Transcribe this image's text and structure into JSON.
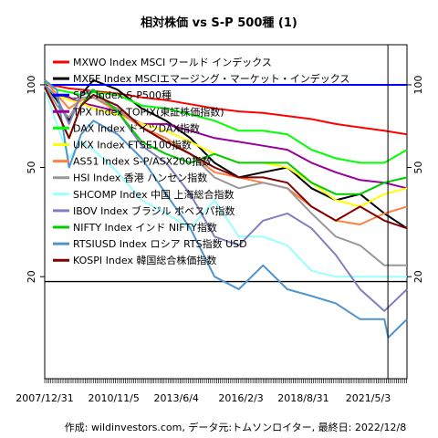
{
  "chart_data": {
    "type": "line",
    "title": "相対株価 vs S-P 500種 (1)",
    "caption": "作成: wildinvestors.com, データ元:トムソンロイター, 最終日: 2022/12/8",
    "xlabel": "",
    "ylabel": "",
    "y_scale": "log",
    "ylim": [
      8.5,
      140
    ],
    "yticks": [
      20,
      50,
      100
    ],
    "xlim": [
      "2007-12-31",
      "2022-12-08"
    ],
    "xtick_labels": [
      "2007/12/31",
      "2010/11/5",
      "2013/6/4",
      "2016/2/3",
      "2018/8/31",
      "2021/5/3"
    ],
    "xtick_dates": [
      "2007-12-31",
      "2010-11-05",
      "2013-06-04",
      "2016-02-03",
      "2018-08-31",
      "2021-05-03"
    ],
    "hlines": [
      {
        "y": 100,
        "color": "#0000ff"
      },
      {
        "y": 19.2,
        "color": "#000000"
      }
    ],
    "vline": {
      "x": "2022-02-24",
      "color": "#000000"
    },
    "grid": false,
    "legend_position": "top-left",
    "series": [
      {
        "name": "MXWO Index MSCI ワールド インデックス",
        "color": "#ff0000",
        "x": [
          "2008-01-01",
          "2008-07-01",
          "2009-01-01",
          "2009-07-01",
          "2010-01-01",
          "2011-01-01",
          "2012-01-01",
          "2013-01-01",
          "2014-01-01",
          "2015-01-01",
          "2016-01-01",
          "2017-01-01",
          "2018-01-01",
          "2019-01-01",
          "2020-01-01",
          "2021-01-01",
          "2022-01-01",
          "2022-12-08"
        ],
        "y": [
          100,
          99,
          97,
          96,
          95,
          93,
          90,
          88,
          85,
          82,
          80,
          79,
          77,
          75,
          72,
          70,
          68,
          66
        ]
      },
      {
        "name": "MXEF Index MSCIエマージング・マーケット・インデックス",
        "color": "#000000",
        "x": [
          "2008-01-01",
          "2008-07-01",
          "2009-01-01",
          "2009-07-01",
          "2010-01-01",
          "2011-01-01",
          "2012-01-01",
          "2013-01-01",
          "2014-01-01",
          "2015-01-01",
          "2016-01-01",
          "2017-01-01",
          "2018-01-01",
          "2019-01-01",
          "2020-01-01",
          "2021-01-01",
          "2022-01-01",
          "2022-12-08"
        ],
        "y": [
          100,
          88,
          74,
          92,
          104,
          96,
          82,
          74,
          64,
          52,
          46,
          48,
          50,
          42,
          38,
          40,
          34,
          30
        ]
      },
      {
        "name": "SPX Index S-P500種",
        "color": "#0000ff",
        "x": [
          "2008-01-01",
          "2022-12-08"
        ],
        "y": [
          100,
          100
        ]
      },
      {
        "name": "TPX Index TOPIX(東証株価指数)",
        "color": "#990099",
        "x": [
          "2008-01-01",
          "2008-07-01",
          "2009-01-01",
          "2009-07-01",
          "2010-01-01",
          "2011-01-01",
          "2012-01-01",
          "2013-01-01",
          "2014-01-01",
          "2015-01-01",
          "2016-01-01",
          "2017-01-01",
          "2018-01-01",
          "2019-01-01",
          "2020-01-01",
          "2021-01-01",
          "2022-01-01",
          "2022-12-08"
        ],
        "y": [
          98,
          92,
          90,
          86,
          84,
          80,
          72,
          72,
          68,
          64,
          62,
          60,
          58,
          52,
          48,
          45,
          44,
          42
        ]
      },
      {
        "name": "DAX Index ドイツDAX指数",
        "color": "#00ff00",
        "x": [
          "2008-01-01",
          "2008-07-01",
          "2009-01-01",
          "2009-07-01",
          "2010-01-01",
          "2011-01-01",
          "2012-01-01",
          "2013-01-01",
          "2014-01-01",
          "2015-01-01",
          "2016-01-01",
          "2017-01-01",
          "2018-01-01",
          "2019-01-01",
          "2020-01-01",
          "2021-01-01",
          "2022-01-01",
          "2022-12-08"
        ],
        "y": [
          102,
          96,
          94,
          92,
          94,
          92,
          84,
          82,
          78,
          74,
          68,
          68,
          66,
          58,
          54,
          52,
          52,
          58
        ]
      },
      {
        "name": "UKX Index FTSE100指数",
        "color": "#ffff00",
        "x": [
          "2008-01-01",
          "2008-07-01",
          "2009-01-01",
          "2009-07-01",
          "2010-01-01",
          "2011-01-01",
          "2012-01-01",
          "2013-01-01",
          "2014-01-01",
          "2015-01-01",
          "2016-01-01",
          "2017-01-01",
          "2018-01-01",
          "2019-01-01",
          "2020-01-01",
          "2021-01-01",
          "2022-01-01",
          "2022-12-08"
        ],
        "y": [
          98,
          92,
          88,
          86,
          82,
          78,
          72,
          68,
          62,
          56,
          52,
          52,
          50,
          44,
          38,
          36,
          40,
          42
        ]
      },
      {
        "name": "AS51 Index S-P/ASX200指数",
        "color": "#ff8040",
        "x": [
          "2008-01-01",
          "2008-07-01",
          "2009-01-01",
          "2009-07-01",
          "2010-01-01",
          "2011-01-01",
          "2012-01-01",
          "2013-01-01",
          "2014-01-01",
          "2015-01-01",
          "2016-01-01",
          "2017-01-01",
          "2018-01-01",
          "2019-01-01",
          "2020-01-01",
          "2021-01-01",
          "2022-01-01",
          "2022-12-08"
        ],
        "y": [
          104,
          92,
          82,
          88,
          90,
          80,
          70,
          64,
          56,
          48,
          46,
          44,
          42,
          36,
          32,
          31,
          34,
          36
        ]
      },
      {
        "name": "HSI Index 香港 ハンセン指数",
        "color": "#999999",
        "x": [
          "2008-01-01",
          "2008-07-01",
          "2009-01-01",
          "2009-07-01",
          "2010-01-01",
          "2011-01-01",
          "2012-01-01",
          "2013-01-01",
          "2014-01-01",
          "2015-01-01",
          "2016-01-01",
          "2017-01-01",
          "2018-01-01",
          "2019-01-01",
          "2020-01-01",
          "2021-01-01",
          "2022-01-01",
          "2022-12-08"
        ],
        "y": [
          100,
          84,
          76,
          90,
          90,
          82,
          70,
          62,
          56,
          46,
          42,
          44,
          42,
          34,
          28,
          26,
          22,
          22
        ]
      },
      {
        "name": "SHCOMP Index 中国 上海総合指数",
        "color": "#99ffff",
        "x": [
          "2008-01-01",
          "2008-07-01",
          "2009-01-01",
          "2009-07-01",
          "2010-01-01",
          "2011-01-01",
          "2012-01-01",
          "2013-01-01",
          "2014-01-01",
          "2015-01-01",
          "2016-01-01",
          "2017-01-01",
          "2018-01-01",
          "2019-01-01",
          "2020-01-01",
          "2021-01-01",
          "2022-01-01",
          "2022-12-08"
        ],
        "y": [
          96,
          72,
          54,
          62,
          58,
          48,
          38,
          34,
          30,
          38,
          28,
          28,
          26,
          21,
          20,
          20,
          20,
          20
        ]
      },
      {
        "name": "IBOV Index ブラジル ボベスパ指数",
        "color": "#8080c0",
        "x": [
          "2008-01-01",
          "2008-07-01",
          "2009-01-01",
          "2009-07-01",
          "2010-01-01",
          "2011-01-01",
          "2012-01-01",
          "2013-01-01",
          "2014-01-01",
          "2015-01-01",
          "2016-01-01",
          "2017-01-01",
          "2018-01-01",
          "2019-01-01",
          "2020-01-01",
          "2021-01-01",
          "2022-01-01",
          "2022-12-08"
        ],
        "y": [
          100,
          90,
          72,
          92,
          96,
          80,
          60,
          52,
          40,
          28,
          26,
          32,
          34,
          30,
          24,
          18,
          15,
          18
        ]
      },
      {
        "name": "NIFTY Index インド NIFTY指数",
        "color": "#00cc00",
        "x": [
          "2008-01-01",
          "2008-07-01",
          "2009-01-01",
          "2009-07-01",
          "2010-01-01",
          "2011-01-01",
          "2012-01-01",
          "2013-01-01",
          "2014-01-01",
          "2015-01-01",
          "2016-01-01",
          "2017-01-01",
          "2018-01-01",
          "2019-01-01",
          "2020-01-01",
          "2021-01-01",
          "2022-01-01",
          "2022-12-08"
        ],
        "y": [
          98,
          80,
          64,
          84,
          96,
          80,
          62,
          56,
          52,
          56,
          52,
          52,
          52,
          44,
          40,
          40,
          44,
          46
        ]
      },
      {
        "name": "RTSIUSD Index ロシア RTS指数 USD",
        "color": "#4f94cd",
        "x": [
          "2008-01-01",
          "2008-07-01",
          "2009-01-01",
          "2009-07-01",
          "2010-01-01",
          "2011-01-01",
          "2012-01-01",
          "2013-01-01",
          "2014-01-01",
          "2015-01-01",
          "2016-01-01",
          "2017-01-01",
          "2018-01-01",
          "2019-01-01",
          "2020-01-01",
          "2021-01-01",
          "2022-01-01",
          "2022-03-01",
          "2022-12-08"
        ],
        "y": [
          104,
          96,
          50,
          66,
          74,
          66,
          54,
          40,
          30,
          20,
          18,
          22,
          18,
          17,
          16,
          14,
          14,
          12,
          14
        ]
      },
      {
        "name": "KOSPI Index 韓国総合株価指数",
        "color": "#800000",
        "x": [
          "2008-01-01",
          "2008-07-01",
          "2009-01-01",
          "2009-07-01",
          "2010-01-01",
          "2011-01-01",
          "2012-01-01",
          "2013-01-01",
          "2014-01-01",
          "2015-01-01",
          "2016-01-01",
          "2017-01-01",
          "2018-01-01",
          "2019-01-01",
          "2020-01-01",
          "2021-01-01",
          "2022-01-01",
          "2022-12-08"
        ],
        "y": [
          98,
          80,
          64,
          84,
          92,
          84,
          70,
          62,
          56,
          50,
          46,
          46,
          44,
          36,
          32,
          36,
          32,
          30
        ]
      }
    ]
  }
}
